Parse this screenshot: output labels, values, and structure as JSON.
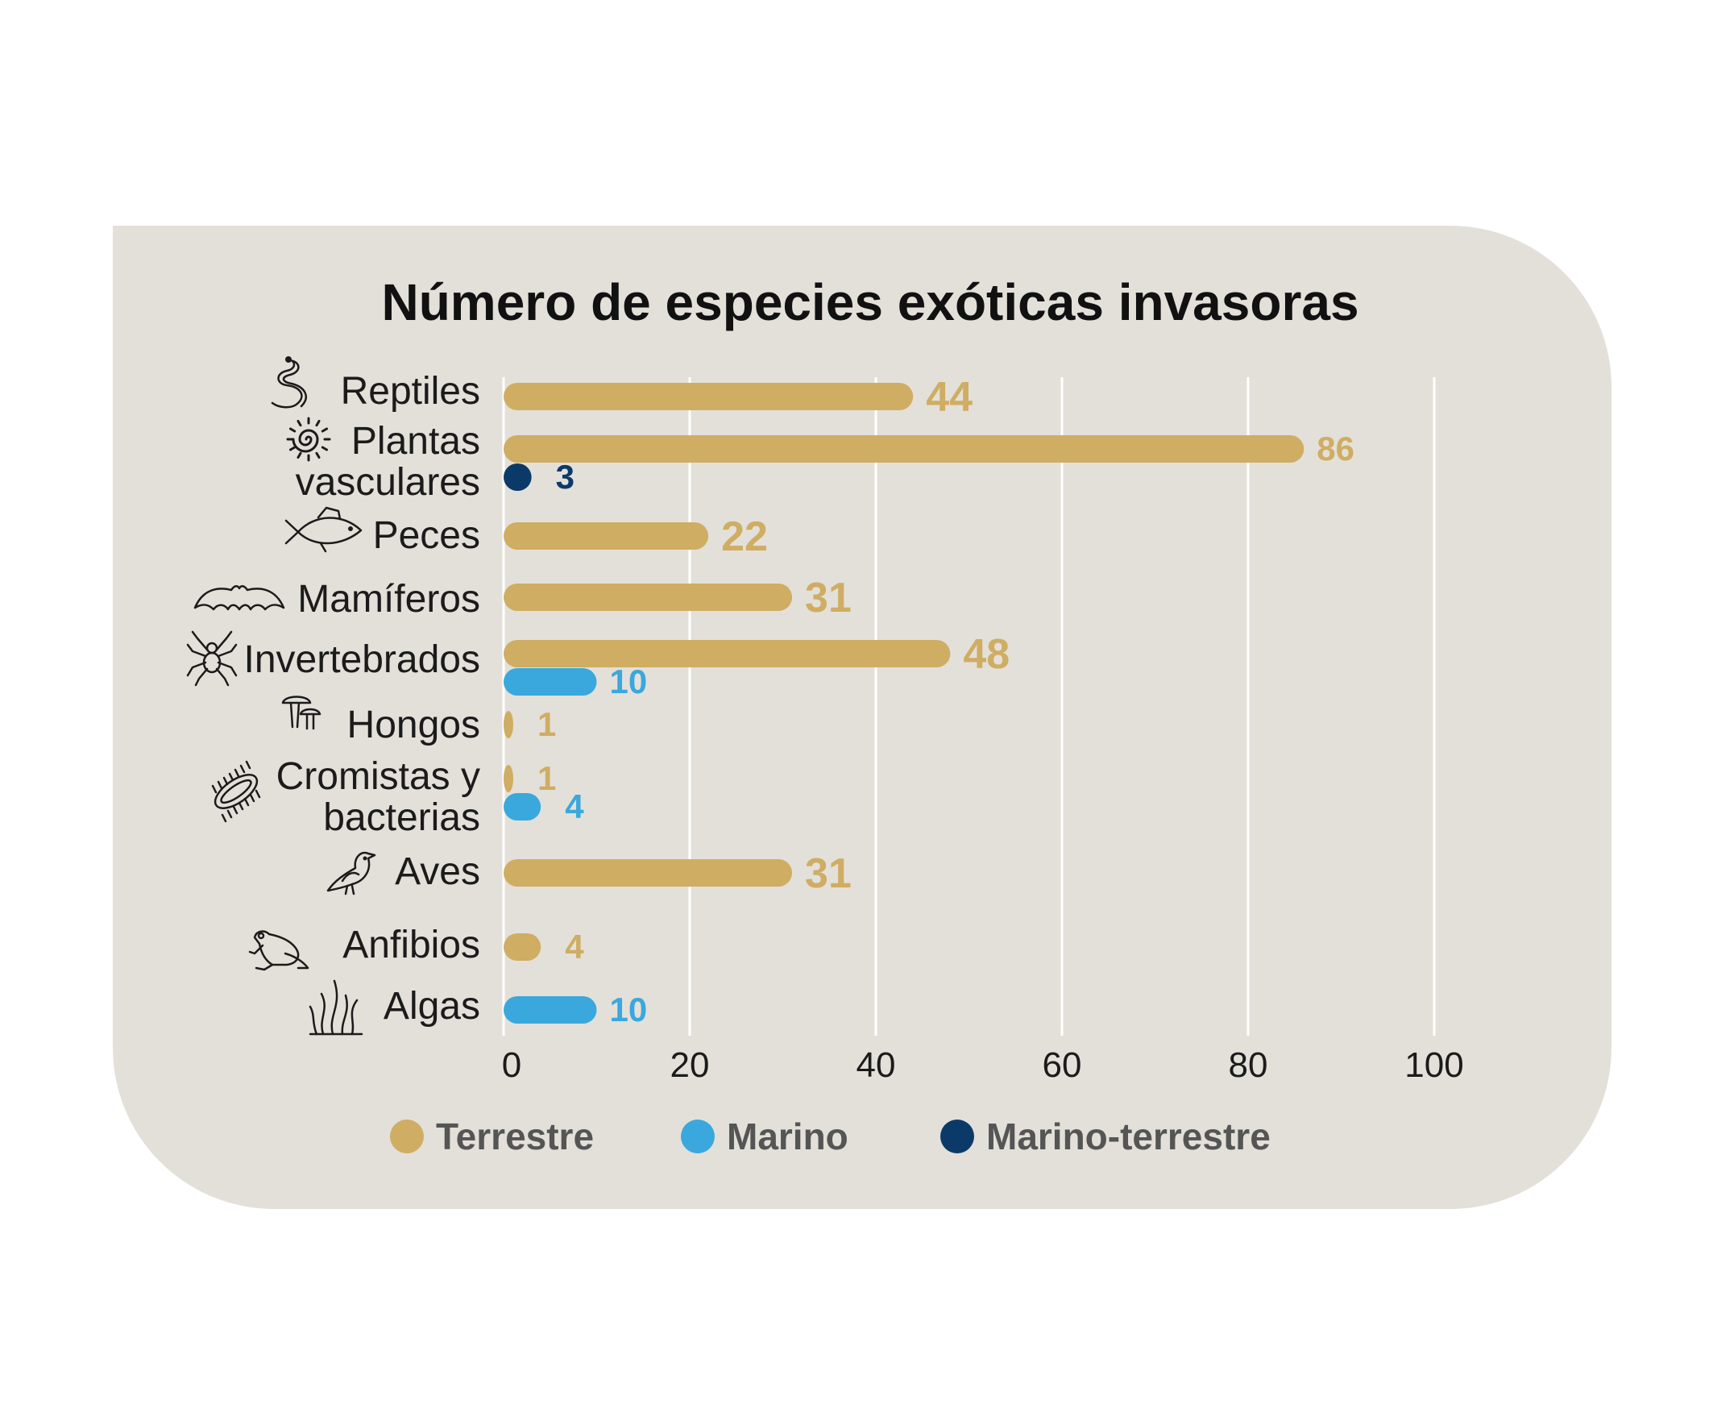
{
  "chart_data": {
    "type": "bar",
    "orientation": "horizontal",
    "title": "Número de especies exóticas invasoras",
    "xlim": [
      0,
      100
    ],
    "x_ticks": [
      "0",
      "20",
      "40",
      "60",
      "80",
      "100"
    ],
    "grid": true,
    "legend_position": "bottom",
    "series_colors": {
      "Terrestre": "#cfad62",
      "Marino": "#3aa8dc",
      "Marino-terrestre": "#0c3a68"
    },
    "background_color": "#e3e0da",
    "categories": [
      {
        "label_lines": [
          "Reptiles"
        ],
        "icon": "snake-icon",
        "bars": [
          {
            "series": "Terrestre",
            "value": 44,
            "label": "44"
          }
        ]
      },
      {
        "label_lines": [
          "Plantas",
          "vasculares"
        ],
        "icon": "plant-spiral-icon",
        "bars": [
          {
            "series": "Terrestre",
            "value": 86,
            "label": "86"
          },
          {
            "series": "Marino-terrestre",
            "value": 3,
            "label": "3"
          }
        ]
      },
      {
        "label_lines": [
          "Peces"
        ],
        "icon": "fish-icon",
        "bars": [
          {
            "series": "Terrestre",
            "value": 22,
            "label": "22"
          }
        ]
      },
      {
        "label_lines": [
          "Mamíferos"
        ],
        "icon": "bat-icon",
        "bars": [
          {
            "series": "Terrestre",
            "value": 31,
            "label": "31"
          }
        ]
      },
      {
        "label_lines": [
          "Invertebrados"
        ],
        "icon": "spider-icon",
        "bars": [
          {
            "series": "Terrestre",
            "value": 48,
            "label": "48"
          },
          {
            "series": "Marino",
            "value": 10,
            "label": "10"
          }
        ]
      },
      {
        "label_lines": [
          "Hongos"
        ],
        "icon": "mushroom-icon",
        "bars": [
          {
            "series": "Terrestre",
            "value": 1,
            "label": "1"
          }
        ]
      },
      {
        "label_lines": [
          "Cromistas y",
          "bacterias"
        ],
        "icon": "bacteria-icon",
        "bars": [
          {
            "series": "Terrestre",
            "value": 1,
            "label": "1"
          },
          {
            "series": "Marino",
            "value": 4,
            "label": "4"
          }
        ]
      },
      {
        "label_lines": [
          "Aves"
        ],
        "icon": "bird-icon",
        "bars": [
          {
            "series": "Terrestre",
            "value": 31,
            "label": "31"
          }
        ]
      },
      {
        "label_lines": [
          "Anfibios"
        ],
        "icon": "frog-icon",
        "bars": [
          {
            "series": "Terrestre",
            "value": 4,
            "label": "4"
          }
        ]
      },
      {
        "label_lines": [
          "Algas"
        ],
        "icon": "seaweed-icon",
        "bars": [
          {
            "series": "Marino",
            "value": 10,
            "label": "10"
          }
        ]
      }
    ],
    "legend": [
      "Terrestre",
      "Marino",
      "Marino-terrestre"
    ]
  }
}
